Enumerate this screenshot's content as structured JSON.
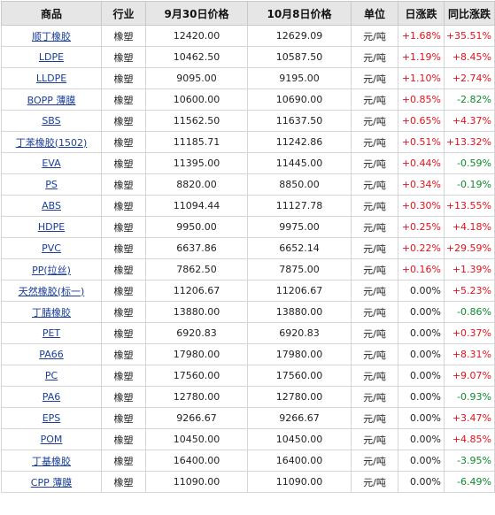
{
  "headers": [
    "商品",
    "行业",
    "9月30日价格",
    "10月8日价格",
    "单位",
    "日涨跌",
    "同比涨跌"
  ],
  "rows": [
    {
      "name": "顺丁橡胶",
      "industry": "橡塑",
      "p1": "12420.00",
      "p2": "12629.09",
      "unit": "元/吨",
      "daily": "+1.68%",
      "yoy": "+35.51%"
    },
    {
      "name": "LDPE",
      "industry": "橡塑",
      "p1": "10462.50",
      "p2": "10587.50",
      "unit": "元/吨",
      "daily": "+1.19%",
      "yoy": "+8.45%"
    },
    {
      "name": "LLDPE",
      "industry": "橡塑",
      "p1": "9095.00",
      "p2": "9195.00",
      "unit": "元/吨",
      "daily": "+1.10%",
      "yoy": "+2.74%"
    },
    {
      "name": "BOPP 薄膜",
      "industry": "橡塑",
      "p1": "10600.00",
      "p2": "10690.00",
      "unit": "元/吨",
      "daily": "+0.85%",
      "yoy": "-2.82%"
    },
    {
      "name": "SBS",
      "industry": "橡塑",
      "p1": "11562.50",
      "p2": "11637.50",
      "unit": "元/吨",
      "daily": "+0.65%",
      "yoy": "+4.37%"
    },
    {
      "name": "丁苯橡胶(1502)",
      "industry": "橡塑",
      "p1": "11185.71",
      "p2": "11242.86",
      "unit": "元/吨",
      "daily": "+0.51%",
      "yoy": "+13.32%"
    },
    {
      "name": "EVA",
      "industry": "橡塑",
      "p1": "11395.00",
      "p2": "11445.00",
      "unit": "元/吨",
      "daily": "+0.44%",
      "yoy": "-0.59%"
    },
    {
      "name": "PS",
      "industry": "橡塑",
      "p1": "8820.00",
      "p2": "8850.00",
      "unit": "元/吨",
      "daily": "+0.34%",
      "yoy": "-0.19%"
    },
    {
      "name": "ABS",
      "industry": "橡塑",
      "p1": "11094.44",
      "p2": "11127.78",
      "unit": "元/吨",
      "daily": "+0.30%",
      "yoy": "+13.55%"
    },
    {
      "name": "HDPE",
      "industry": "橡塑",
      "p1": "9950.00",
      "p2": "9975.00",
      "unit": "元/吨",
      "daily": "+0.25%",
      "yoy": "+4.18%"
    },
    {
      "name": "PVC",
      "industry": "橡塑",
      "p1": "6637.86",
      "p2": "6652.14",
      "unit": "元/吨",
      "daily": "+0.22%",
      "yoy": "+29.59%"
    },
    {
      "name": "PP(拉丝)",
      "industry": "橡塑",
      "p1": "7862.50",
      "p2": "7875.00",
      "unit": "元/吨",
      "daily": "+0.16%",
      "yoy": "+1.39%"
    },
    {
      "name": "天然橡胶(标一)",
      "industry": "橡塑",
      "p1": "11206.67",
      "p2": "11206.67",
      "unit": "元/吨",
      "daily": "0.00%",
      "yoy": "+5.23%"
    },
    {
      "name": "丁腈橡胶",
      "industry": "橡塑",
      "p1": "13880.00",
      "p2": "13880.00",
      "unit": "元/吨",
      "daily": "0.00%",
      "yoy": "-0.86%"
    },
    {
      "name": "PET",
      "industry": "橡塑",
      "p1": "6920.83",
      "p2": "6920.83",
      "unit": "元/吨",
      "daily": "0.00%",
      "yoy": "+0.37%"
    },
    {
      "name": "PA66",
      "industry": "橡塑",
      "p1": "17980.00",
      "p2": "17980.00",
      "unit": "元/吨",
      "daily": "0.00%",
      "yoy": "+8.31%"
    },
    {
      "name": "PC",
      "industry": "橡塑",
      "p1": "17560.00",
      "p2": "17560.00",
      "unit": "元/吨",
      "daily": "0.00%",
      "yoy": "+9.07%"
    },
    {
      "name": "PA6",
      "industry": "橡塑",
      "p1": "12780.00",
      "p2": "12780.00",
      "unit": "元/吨",
      "daily": "0.00%",
      "yoy": "-0.93%"
    },
    {
      "name": "EPS",
      "industry": "橡塑",
      "p1": "9266.67",
      "p2": "9266.67",
      "unit": "元/吨",
      "daily": "0.00%",
      "yoy": "+3.47%"
    },
    {
      "name": "POM",
      "industry": "橡塑",
      "p1": "10450.00",
      "p2": "10450.00",
      "unit": "元/吨",
      "daily": "0.00%",
      "yoy": "+4.85%"
    },
    {
      "name": "丁基橡胶",
      "industry": "橡塑",
      "p1": "16400.00",
      "p2": "16400.00",
      "unit": "元/吨",
      "daily": "0.00%",
      "yoy": "-3.95%"
    },
    {
      "name": "CPP 薄膜",
      "industry": "橡塑",
      "p1": "11090.00",
      "p2": "11090.00",
      "unit": "元/吨",
      "daily": "0.00%",
      "yoy": "-6.49%"
    }
  ],
  "colors": {
    "up": "#e0141d",
    "down": "#0f8a2c",
    "link": "#1a3e9a",
    "header_bg": "#e6e6e6"
  }
}
